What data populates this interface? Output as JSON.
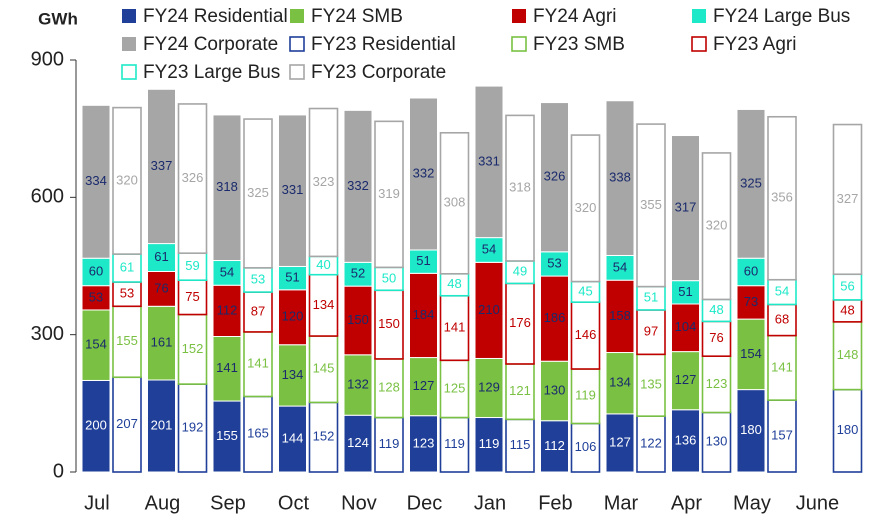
{
  "chart_data": {
    "type": "bar",
    "y_label": "GWh",
    "categories": [
      "Jul",
      "Aug",
      "Sep",
      "Oct",
      "Nov",
      "Dec",
      "Jan",
      "Feb",
      "Mar",
      "Apr",
      "May",
      "June"
    ],
    "ylim": [
      0,
      900
    ],
    "yticks": [
      0,
      300,
      600,
      900
    ],
    "series": [
      {
        "name": "FY24 Residential",
        "color": "#1f3f99",
        "values": [
          200,
          201,
          155,
          144,
          124,
          123,
          119,
          112,
          127,
          136,
          180,
          null
        ]
      },
      {
        "name": "FY24 SMB",
        "color": "#7ac143",
        "values": [
          154,
          161,
          141,
          134,
          132,
          127,
          129,
          130,
          134,
          127,
          154,
          null
        ]
      },
      {
        "name": "FY24 Agri",
        "color": "#c00000",
        "values": [
          53,
          76,
          112,
          120,
          150,
          184,
          210,
          186,
          158,
          104,
          73,
          null
        ]
      },
      {
        "name": "FY24 Large Bus",
        "color": "#1de9c8",
        "values": [
          60,
          61,
          54,
          51,
          52,
          51,
          54,
          53,
          54,
          51,
          60,
          null
        ]
      },
      {
        "name": "FY24 Corporate",
        "color": "#a6a6a6",
        "values": [
          334,
          337,
          318,
          331,
          332,
          332,
          331,
          326,
          338,
          317,
          325,
          null
        ]
      },
      {
        "name": "FY23 Residential",
        "color": "#1f3f99",
        "values": [
          207,
          192,
          165,
          152,
          119,
          119,
          115,
          106,
          122,
          130,
          157,
          180
        ]
      },
      {
        "name": "FY23 SMB",
        "color": "#7ac143",
        "values": [
          155,
          152,
          141,
          145,
          128,
          125,
          121,
          119,
          135,
          123,
          141,
          148
        ]
      },
      {
        "name": "FY23 Agri",
        "color": "#c00000",
        "values": [
          53,
          75,
          87,
          134,
          150,
          141,
          176,
          146,
          97,
          76,
          68,
          48
        ]
      },
      {
        "name": "FY23 Large Bus",
        "color": "#1de9c8",
        "values": [
          61,
          59,
          53,
          40,
          50,
          48,
          49,
          45,
          51,
          48,
          54,
          56
        ]
      },
      {
        "name": "FY23 Corporate",
        "color": "#a6a6a6",
        "values": [
          320,
          326,
          325,
          323,
          319,
          308,
          318,
          320,
          355,
          320,
          356,
          327
        ]
      }
    ]
  }
}
